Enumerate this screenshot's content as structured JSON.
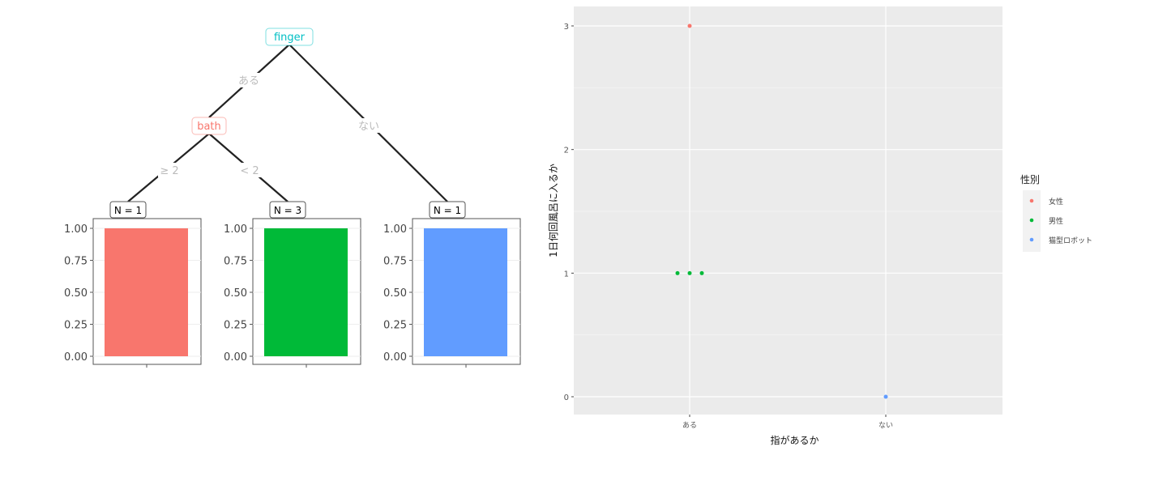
{
  "chart_data": [
    {
      "type": "tree",
      "nodes": [
        {
          "id": "finger",
          "label": "finger",
          "color": "#00BFC4"
        },
        {
          "id": "bath",
          "label": "bath",
          "color": "#F8766D"
        }
      ],
      "edges": [
        {
          "from": "finger",
          "to": "bath",
          "label": "ある"
        },
        {
          "from": "finger",
          "to": "leaf3",
          "label": "ない"
        },
        {
          "from": "bath",
          "to": "leaf1",
          "label": "≥ 2"
        },
        {
          "from": "bath",
          "to": "leaf2",
          "label": "< 2"
        }
      ],
      "leaves": [
        {
          "id": "leaf1",
          "label": "N = 1",
          "value": 1.0,
          "color": "#F8766D"
        },
        {
          "id": "leaf2",
          "label": "N = 3",
          "value": 1.0,
          "color": "#00BA38"
        },
        {
          "id": "leaf3",
          "label": "N = 1",
          "value": 1.0,
          "color": "#619CFF"
        }
      ],
      "yticks": [
        "0.00",
        "0.25",
        "0.50",
        "0.75",
        "1.00"
      ],
      "ylim": [
        0,
        1
      ]
    },
    {
      "type": "scatter",
      "xlabel": "指があるか",
      "ylabel": "1日何回風呂に入るか",
      "categories": [
        "ある",
        "ない"
      ],
      "yticks": [
        0,
        1,
        2,
        3
      ],
      "ylim": [
        -0.15,
        3.08
      ],
      "grid": true,
      "legend": {
        "title": "性別",
        "placement": "right",
        "entries": [
          {
            "name": "女性",
            "color": "#F8766D"
          },
          {
            "name": "男性",
            "color": "#00BA38"
          },
          {
            "name": "猫型ロボット",
            "color": "#619CFF"
          }
        ]
      },
      "series": [
        {
          "name": "女性",
          "points": [
            {
              "x": "ある",
              "y": 3
            }
          ]
        },
        {
          "name": "男性",
          "points": [
            {
              "x": "ある",
              "y": 1
            },
            {
              "x": "ある",
              "y": 1
            },
            {
              "x": "ある",
              "y": 1
            }
          ]
        },
        {
          "name": "猫型ロボット",
          "points": [
            {
              "x": "ない",
              "y": 0
            }
          ]
        }
      ]
    }
  ]
}
